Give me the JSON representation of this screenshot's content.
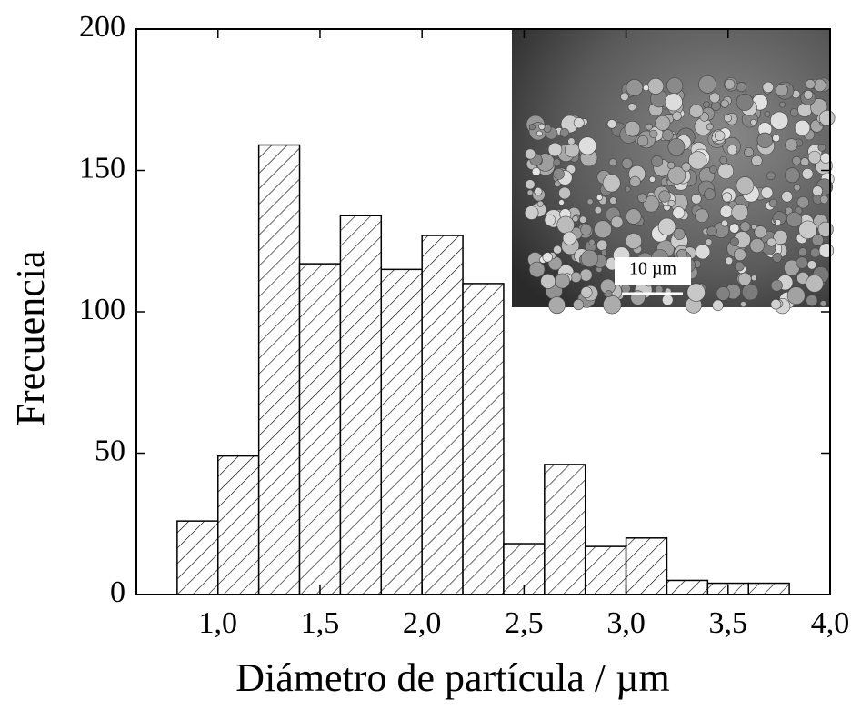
{
  "chart_data": {
    "type": "histogram",
    "xlabel": "Diámetro de partícula / µm",
    "ylabel": "Frecuencia",
    "bins": [
      0.8,
      1.0,
      1.2,
      1.4,
      1.6,
      1.8,
      2.0,
      2.2,
      2.4,
      2.6,
      2.8,
      3.0,
      3.2,
      3.4,
      3.6,
      3.8
    ],
    "values": [
      26,
      49,
      159,
      117,
      134,
      115,
      127,
      110,
      18,
      46,
      17,
      20,
      5,
      4,
      4
    ],
    "xlim": [
      0.6,
      4.0
    ],
    "xticks": [
      {
        "value": 1.0,
        "label": "1,0"
      },
      {
        "value": 1.5,
        "label": "1,5"
      },
      {
        "value": 2.0,
        "label": "2,0"
      },
      {
        "value": 2.5,
        "label": "2,5"
      },
      {
        "value": 3.0,
        "label": "3,0"
      },
      {
        "value": 3.5,
        "label": "3,5"
      },
      {
        "value": 4.0,
        "label": "4,0"
      }
    ],
    "ylim": [
      0,
      200
    ],
    "yticks": [
      0,
      50,
      100,
      150,
      200
    ],
    "inset_scale_label": "10 µm"
  }
}
